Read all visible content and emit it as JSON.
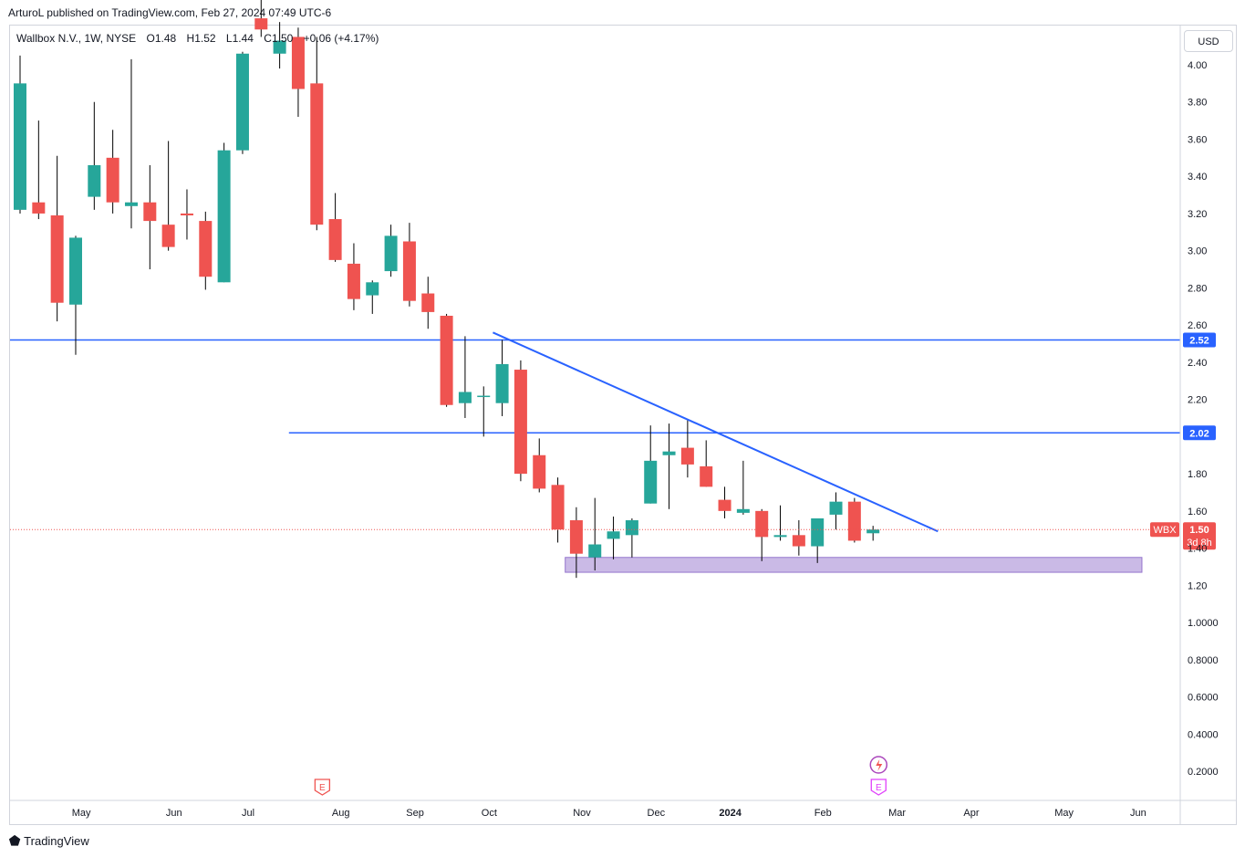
{
  "header": {
    "published": "ArturoL published on TradingView.com, Feb 27, 2024 07:49 UTC-6"
  },
  "footer": {
    "brand": "TradingView",
    "logo_icon": "tradingview-logo-icon"
  },
  "price_scale": {
    "currency": "USD"
  },
  "legend": {
    "symbol": "Wallbox N.V., 1W, NYSE",
    "open": "O1.48",
    "high": "H1.52",
    "low": "L1.44",
    "close": "C1.50",
    "change": "+0.06 (+4.17%)"
  },
  "colors": {
    "up": "#26a69a",
    "down": "#ef5350",
    "line": "#2962ff",
    "zone": "#b39ddb",
    "earnings": "#ef5350",
    "earnings2": "#e040fb"
  },
  "chart_data": {
    "type": "candlestick",
    "ylim": [
      0.1,
      4.2
    ],
    "y_ticks": [
      "4.00",
      "3.80",
      "3.60",
      "3.40",
      "3.20",
      "3.00",
      "2.80",
      "2.60",
      "2.40",
      "2.20",
      "1.80",
      "1.60",
      "1.40",
      "1.20",
      "1.0000",
      "0.8000",
      "0.6000",
      "0.4000",
      "0.2000"
    ],
    "y_tick_values": [
      4.0,
      3.8,
      3.6,
      3.4,
      3.2,
      3.0,
      2.8,
      2.6,
      2.4,
      2.2,
      1.8,
      1.6,
      1.4,
      1.2,
      1.0,
      0.8,
      0.6,
      0.4,
      0.2
    ],
    "x_ticks": [
      "May",
      "Jun",
      "Jul",
      "Aug",
      "Sep",
      "Oct",
      "Nov",
      "Dec",
      "2024",
      "Feb",
      "Mar",
      "Apr",
      "May",
      "Jun"
    ],
    "x_tick_weeks": [
      3.3,
      8.3,
      12.3,
      17.3,
      21.3,
      25.3,
      30.3,
      34.3,
      38.3,
      43.3,
      47.3,
      51.3,
      56.3,
      60.3
    ],
    "candles": [
      {
        "o": 3.22,
        "h": 4.05,
        "l": 3.2,
        "c": 3.9
      },
      {
        "o": 3.26,
        "h": 3.7,
        "l": 3.17,
        "c": 3.2
      },
      {
        "o": 3.19,
        "h": 3.51,
        "l": 2.62,
        "c": 2.72
      },
      {
        "o": 2.71,
        "h": 3.08,
        "l": 2.44,
        "c": 3.07
      },
      {
        "o": 3.29,
        "h": 3.8,
        "l": 3.22,
        "c": 3.46
      },
      {
        "o": 3.5,
        "h": 3.65,
        "l": 3.2,
        "c": 3.26
      },
      {
        "o": 3.24,
        "h": 4.03,
        "l": 3.12,
        "c": 3.26
      },
      {
        "o": 3.26,
        "h": 3.46,
        "l": 2.9,
        "c": 3.16
      },
      {
        "o": 3.14,
        "h": 3.59,
        "l": 3.0,
        "c": 3.02
      },
      {
        "o": 3.2,
        "h": 3.33,
        "l": 3.06,
        "c": 3.19
      },
      {
        "o": 3.16,
        "h": 3.21,
        "l": 2.79,
        "c": 2.86
      },
      {
        "o": 2.83,
        "h": 3.58,
        "l": 2.83,
        "c": 3.54
      },
      {
        "o": 3.54,
        "h": 4.07,
        "l": 3.52,
        "c": 4.06
      },
      {
        "o": 4.25,
        "h": 4.35,
        "l": 4.15,
        "c": 4.19
      },
      {
        "o": 4.06,
        "h": 4.23,
        "l": 3.98,
        "c": 4.13
      },
      {
        "o": 4.15,
        "h": 4.2,
        "l": 3.72,
        "c": 3.87
      },
      {
        "o": 3.9,
        "h": 4.15,
        "l": 3.11,
        "c": 3.14
      },
      {
        "o": 3.17,
        "h": 3.31,
        "l": 2.94,
        "c": 2.95
      },
      {
        "o": 2.93,
        "h": 3.04,
        "l": 2.68,
        "c": 2.74
      },
      {
        "o": 2.76,
        "h": 2.84,
        "l": 2.66,
        "c": 2.83
      },
      {
        "o": 2.89,
        "h": 3.14,
        "l": 2.86,
        "c": 3.08
      },
      {
        "o": 3.05,
        "h": 3.15,
        "l": 2.7,
        "c": 2.73
      },
      {
        "o": 2.77,
        "h": 2.86,
        "l": 2.58,
        "c": 2.67
      },
      {
        "o": 2.65,
        "h": 2.66,
        "l": 2.16,
        "c": 2.17
      },
      {
        "o": 2.18,
        "h": 2.54,
        "l": 2.1,
        "c": 2.24
      },
      {
        "o": 2.22,
        "h": 2.27,
        "l": 2.0,
        "c": 2.22
      },
      {
        "o": 2.18,
        "h": 2.52,
        "l": 2.11,
        "c": 2.39
      },
      {
        "o": 2.36,
        "h": 2.41,
        "l": 1.76,
        "c": 1.8
      },
      {
        "o": 1.9,
        "h": 1.99,
        "l": 1.7,
        "c": 1.72
      },
      {
        "o": 1.74,
        "h": 1.78,
        "l": 1.43,
        "c": 1.5
      },
      {
        "o": 1.55,
        "h": 1.62,
        "l": 1.24,
        "c": 1.37
      },
      {
        "o": 1.35,
        "h": 1.67,
        "l": 1.28,
        "c": 1.42
      },
      {
        "o": 1.45,
        "h": 1.57,
        "l": 1.34,
        "c": 1.49
      },
      {
        "o": 1.47,
        "h": 1.56,
        "l": 1.35,
        "c": 1.55
      },
      {
        "o": 1.64,
        "h": 2.06,
        "l": 1.64,
        "c": 1.87
      },
      {
        "o": 1.9,
        "h": 2.07,
        "l": 1.61,
        "c": 1.92
      },
      {
        "o": 1.94,
        "h": 2.09,
        "l": 1.78,
        "c": 1.85
      },
      {
        "o": 1.84,
        "h": 1.98,
        "l": 1.73,
        "c": 1.73
      },
      {
        "o": 1.66,
        "h": 1.73,
        "l": 1.56,
        "c": 1.6
      },
      {
        "o": 1.59,
        "h": 1.87,
        "l": 1.58,
        "c": 1.61
      },
      {
        "o": 1.6,
        "h": 1.61,
        "l": 1.33,
        "c": 1.46
      },
      {
        "o": 1.46,
        "h": 1.63,
        "l": 1.44,
        "c": 1.47
      },
      {
        "o": 1.47,
        "h": 1.55,
        "l": 1.36,
        "c": 1.41
      },
      {
        "o": 1.41,
        "h": 1.56,
        "l": 1.32,
        "c": 1.56
      },
      {
        "o": 1.58,
        "h": 1.7,
        "l": 1.5,
        "c": 1.65
      },
      {
        "o": 1.65,
        "h": 1.67,
        "l": 1.43,
        "c": 1.44
      },
      {
        "o": 1.48,
        "h": 1.52,
        "l": 1.44,
        "c": 1.5
      }
    ],
    "horizontal_lines": [
      {
        "value": 2.52,
        "label": "2.52",
        "start_week": 0
      },
      {
        "value": 2.02,
        "label": "2.02",
        "start_week": 14.5
      }
    ],
    "trendline": {
      "w1": 25.5,
      "v1": 2.56,
      "w2": 49.5,
      "v2": 1.49
    },
    "support_zone": {
      "w1": 29.4,
      "w2": 60.5,
      "top": 1.35,
      "bottom": 1.27
    },
    "last_price": {
      "symbol": "WBX",
      "value": 1.5,
      "label": "1.50",
      "countdown": "3d 8h"
    },
    "earnings_markers": [
      {
        "week": 16.3,
        "label": "E"
      },
      {
        "week": 46.3,
        "label": "E"
      }
    ],
    "dividend_marker": {
      "week": 46.3
    }
  }
}
